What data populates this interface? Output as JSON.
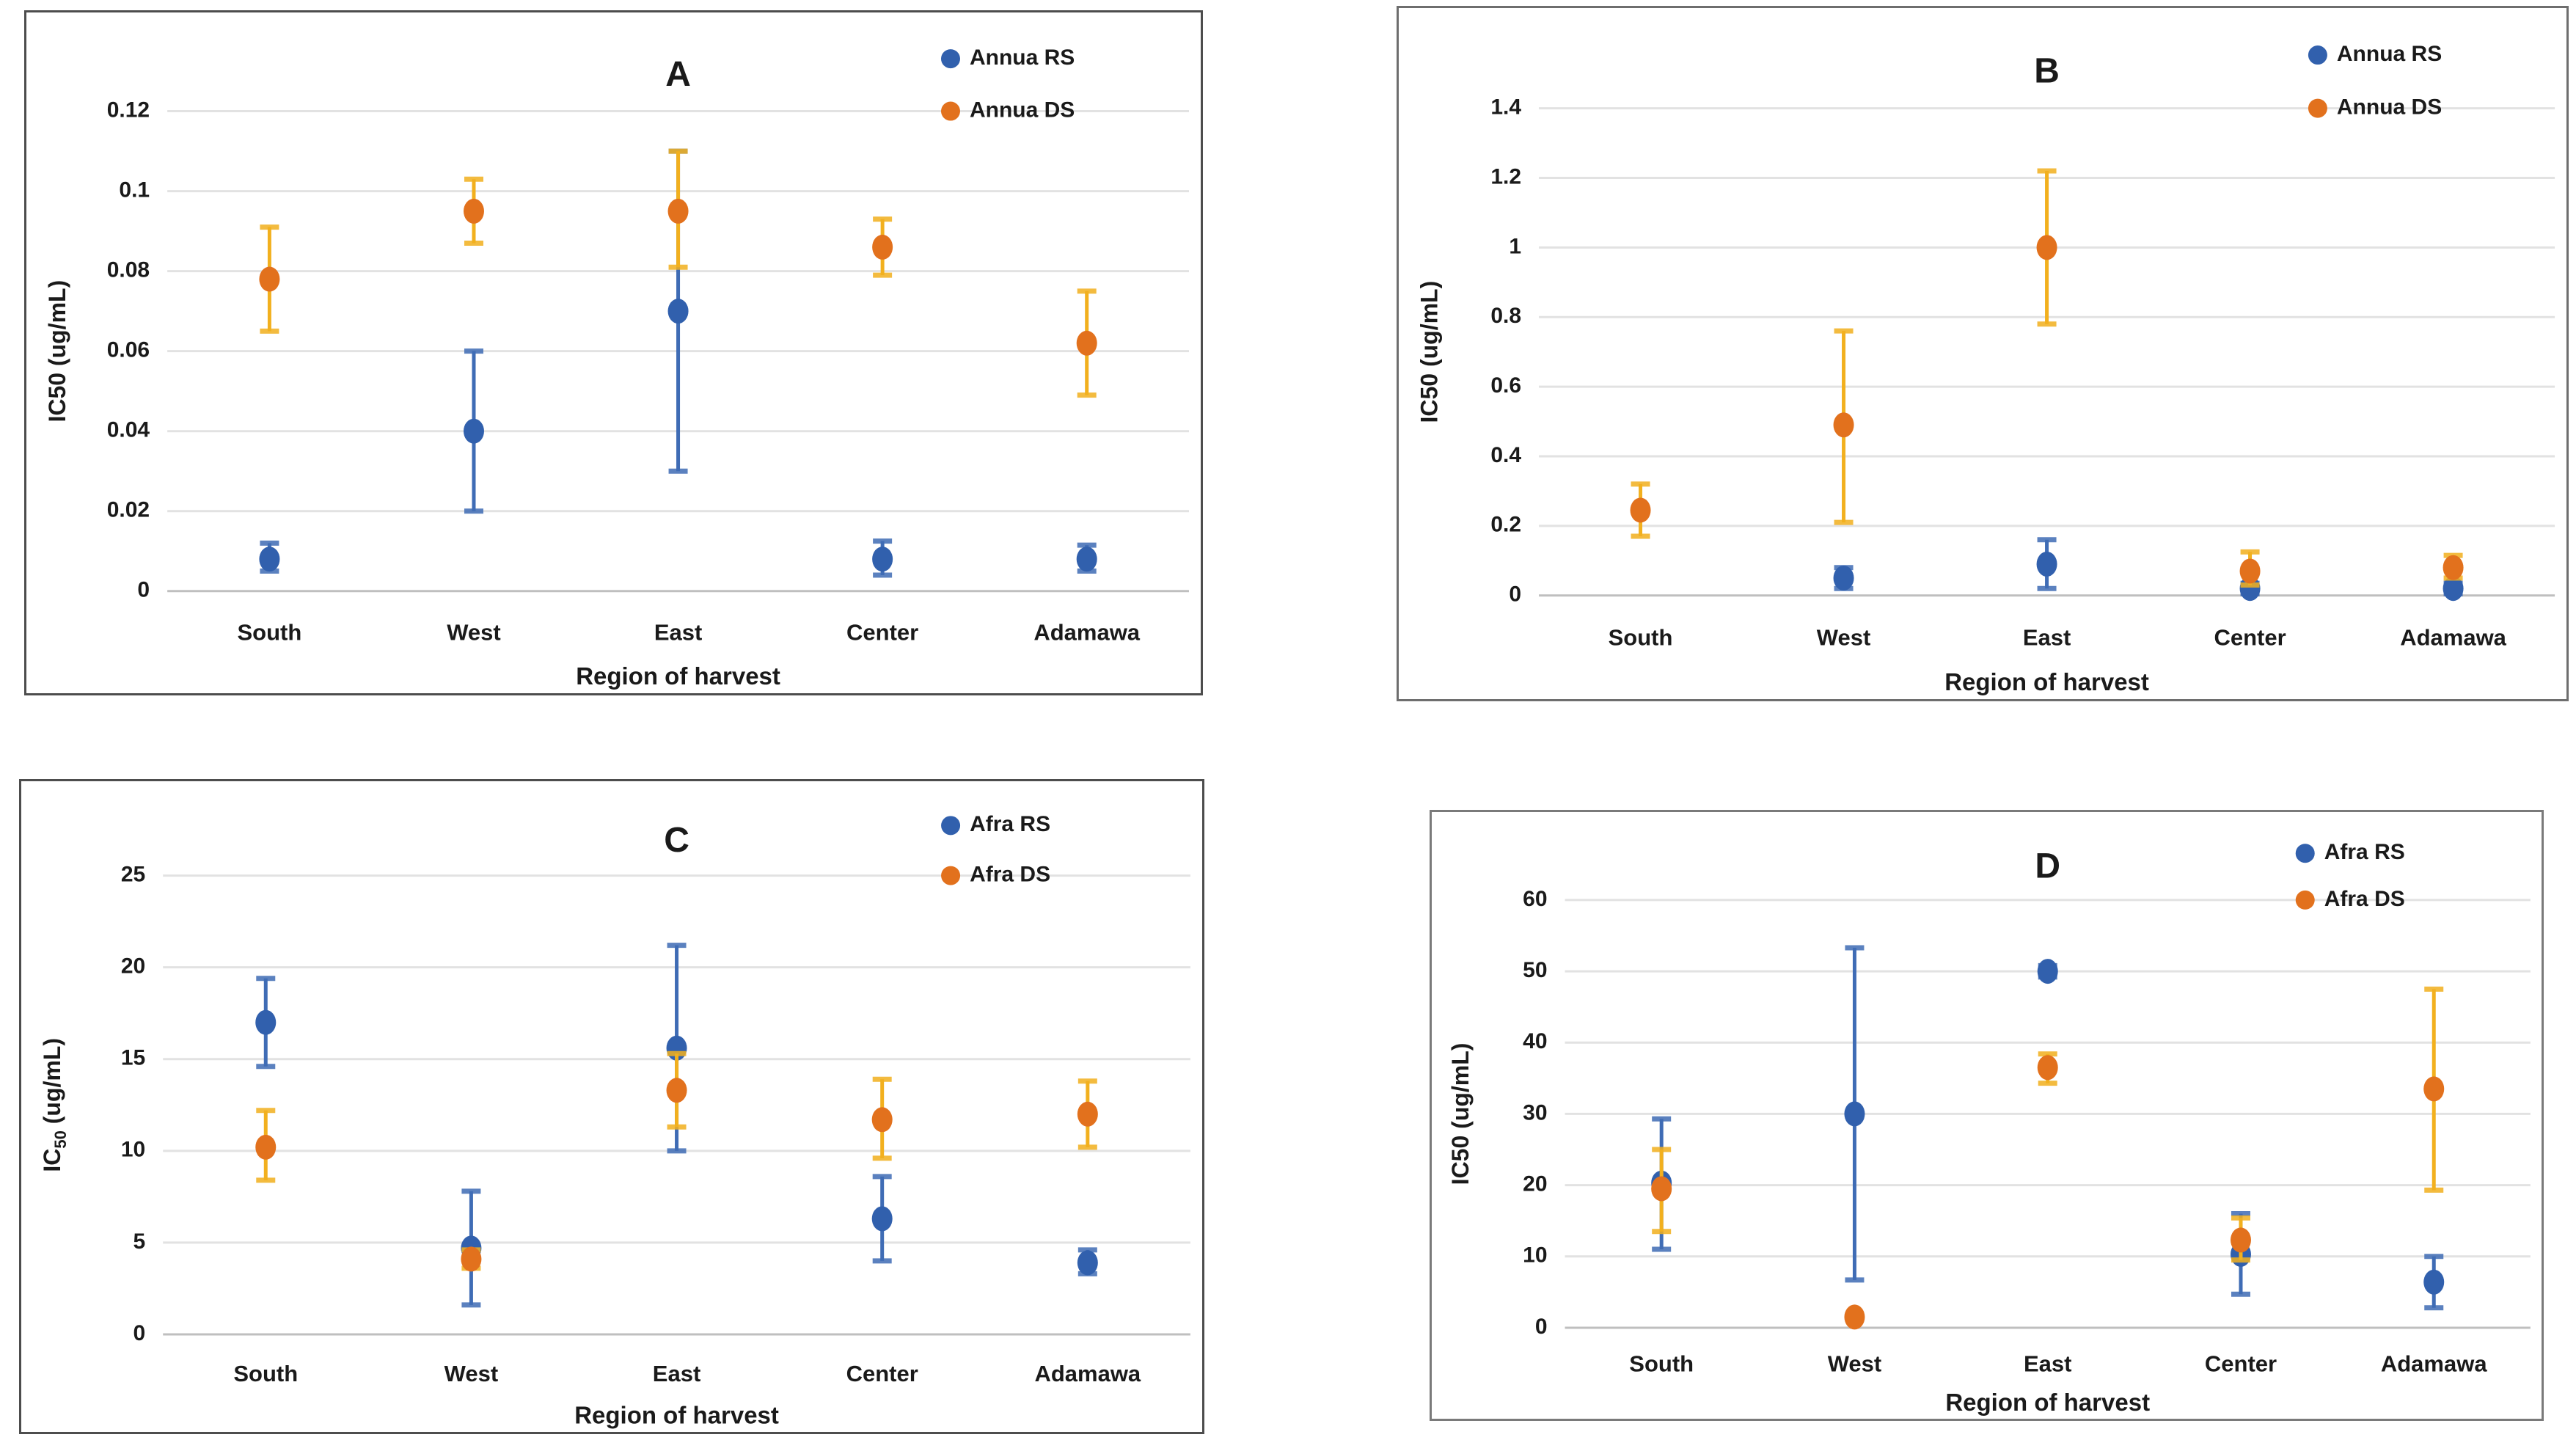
{
  "figure": {
    "background": "#ffffff",
    "grid_color": "#e2e2e2",
    "zero_line_color": "#bfbfbf",
    "text_color": "#1a1a1a"
  },
  "chart_data": [
    {
      "type": "scatter",
      "panel": "A",
      "title": "A",
      "xlabel": "Region of harvest",
      "ylabel": "IC50 (ug/mL)",
      "ylabel_subscript50": false,
      "categories": [
        "South",
        "West",
        "East",
        "Center",
        "Adamawa"
      ],
      "ymax": 0.12,
      "yticks": [
        {
          "value": 0,
          "label": "0"
        },
        {
          "value": 0.02,
          "label": "0.02"
        },
        {
          "value": 0.04,
          "label": "0.04"
        },
        {
          "value": 0.06,
          "label": "0.06"
        },
        {
          "value": 0.08,
          "label": "0.08"
        },
        {
          "value": 0.1,
          "label": "0.1"
        },
        {
          "value": 0.12,
          "label": "0.12"
        }
      ],
      "legend_position": "top-right",
      "legend": [
        {
          "label": "Annua RS",
          "color": "#3160ad"
        },
        {
          "label": "Annua DS",
          "color": "#e2711d"
        }
      ],
      "series": [
        {
          "name": "Annua RS",
          "marker_color": "#3160ad",
          "error_color": "#3f6cb5",
          "points": [
            {
              "y": 0.008,
              "lo": 0.005,
              "hi": 0.012
            },
            {
              "y": 0.04,
              "lo": 0.02,
              "hi": 0.06
            },
            {
              "y": 0.07,
              "lo": 0.03,
              "hi": 0.11
            },
            {
              "y": 0.008,
              "lo": 0.004,
              "hi": 0.0125
            },
            {
              "y": 0.008,
              "lo": 0.005,
              "hi": 0.0115
            }
          ]
        },
        {
          "name": "Annua DS",
          "marker_color": "#e2711d",
          "error_color": "#f2b01e",
          "points": [
            {
              "y": 0.078,
              "lo": 0.065,
              "hi": 0.091
            },
            {
              "y": 0.095,
              "lo": 0.087,
              "hi": 0.103
            },
            {
              "y": 0.095,
              "lo": 0.081,
              "hi": 0.11
            },
            {
              "y": 0.086,
              "lo": 0.079,
              "hi": 0.093
            },
            {
              "y": 0.062,
              "lo": 0.049,
              "hi": 0.075
            }
          ]
        }
      ]
    },
    {
      "type": "scatter",
      "panel": "B",
      "title": "B",
      "xlabel": "Region of harvest",
      "ylabel": "IC50 (ug/mL)",
      "ylabel_subscript50": false,
      "categories": [
        "South",
        "West",
        "East",
        "Center",
        "Adamawa"
      ],
      "ymax": 1.4,
      "yticks": [
        {
          "value": 0,
          "label": "0"
        },
        {
          "value": 0.2,
          "label": "0.2"
        },
        {
          "value": 0.4,
          "label": "0.4"
        },
        {
          "value": 0.6,
          "label": "0.6"
        },
        {
          "value": 0.8,
          "label": "0.8"
        },
        {
          "value": 1.0,
          "label": "1"
        },
        {
          "value": 1.2,
          "label": "1.2"
        },
        {
          "value": 1.4,
          "label": "1.4"
        }
      ],
      "legend_position": "top-right",
      "legend": [
        {
          "label": "Annua RS",
          "color": "#3160ad"
        },
        {
          "label": "Annua DS",
          "color": "#e2711d"
        }
      ],
      "series": [
        {
          "name": "Annua RS",
          "marker_color": "#3160ad",
          "error_color": "#3f6cb5",
          "points": [
            null,
            {
              "y": 0.05,
              "lo": 0.02,
              "hi": 0.08
            },
            {
              "y": 0.09,
              "lo": 0.02,
              "hi": 0.16
            },
            {
              "y": 0.02,
              "lo": 0.005,
              "hi": 0.035
            },
            {
              "y": 0.02,
              "lo": 0.005,
              "hi": 0.035
            }
          ]
        },
        {
          "name": "Annua DS",
          "marker_color": "#e2711d",
          "error_color": "#f2b01e",
          "points": [
            {
              "y": 0.245,
              "lo": 0.17,
              "hi": 0.32
            },
            {
              "y": 0.49,
              "lo": 0.21,
              "hi": 0.76
            },
            {
              "y": 1.0,
              "lo": 0.78,
              "hi": 1.22
            },
            {
              "y": 0.07,
              "lo": 0.03,
              "hi": 0.125
            },
            {
              "y": 0.08,
              "lo": 0.05,
              "hi": 0.115
            }
          ]
        }
      ]
    },
    {
      "type": "scatter",
      "panel": "C",
      "title": "C",
      "xlabel": "Region of harvest",
      "ylabel": "IC50 (ug/mL)",
      "ylabel_subscript50": true,
      "categories": [
        "South",
        "West",
        "East",
        "Center",
        "Adamawa"
      ],
      "ymax": 25,
      "yticks": [
        {
          "value": 0,
          "label": "0"
        },
        {
          "value": 5,
          "label": "5"
        },
        {
          "value": 10,
          "label": "10"
        },
        {
          "value": 15,
          "label": "15"
        },
        {
          "value": 20,
          "label": "20"
        },
        {
          "value": 25,
          "label": "25"
        }
      ],
      "legend_position": "top-right",
      "legend": [
        {
          "label": "Afra RS",
          "color": "#3160ad"
        },
        {
          "label": "Afra DS",
          "color": "#e2711d"
        }
      ],
      "series": [
        {
          "name": "Afra RS",
          "marker_color": "#3160ad",
          "error_color": "#3f6cb5",
          "points": [
            {
              "y": 17.0,
              "lo": 14.6,
              "hi": 19.4
            },
            {
              "y": 4.7,
              "lo": 1.6,
              "hi": 7.8
            },
            {
              "y": 15.6,
              "lo": 10.0,
              "hi": 21.2
            },
            {
              "y": 6.3,
              "lo": 4.0,
              "hi": 8.6
            },
            {
              "y": 3.9,
              "lo": 3.3,
              "hi": 4.6
            }
          ]
        },
        {
          "name": "Afra DS",
          "marker_color": "#e2711d",
          "error_color": "#f2b01e",
          "points": [
            {
              "y": 10.2,
              "lo": 8.4,
              "hi": 12.2
            },
            {
              "y": 4.1,
              "lo": 3.6,
              "hi": 4.6
            },
            {
              "y": 13.3,
              "lo": 11.3,
              "hi": 15.3
            },
            {
              "y": 11.7,
              "lo": 9.6,
              "hi": 13.9
            },
            {
              "y": 12.0,
              "lo": 10.2,
              "hi": 13.8
            }
          ]
        }
      ]
    },
    {
      "type": "scatter",
      "panel": "D",
      "title": "D",
      "xlabel": "Region of harvest",
      "ylabel": "IC50 (ug/mL)",
      "ylabel_subscript50": false,
      "categories": [
        "South",
        "West",
        "East",
        "Center",
        "Adamawa"
      ],
      "ymax": 60,
      "yticks": [
        {
          "value": 0,
          "label": "0"
        },
        {
          "value": 10,
          "label": "10"
        },
        {
          "value": 20,
          "label": "20"
        },
        {
          "value": 30,
          "label": "30"
        },
        {
          "value": 40,
          "label": "40"
        },
        {
          "value": 50,
          "label": "50"
        },
        {
          "value": 60,
          "label": "60"
        }
      ],
      "legend_position": "top-right",
      "legend": [
        {
          "label": "Afra RS",
          "color": "#3160ad"
        },
        {
          "label": "Afra DS",
          "color": "#e2711d"
        }
      ],
      "series": [
        {
          "name": "Afra RS",
          "marker_color": "#3160ad",
          "error_color": "#3f6cb5",
          "points": [
            {
              "y": 20.3,
              "lo": 11.0,
              "hi": 29.3
            },
            {
              "y": 30.0,
              "lo": 6.7,
              "hi": 53.3
            },
            {
              "y": 50.0,
              "lo": 49.2,
              "hi": 50.8
            },
            {
              "y": 10.3,
              "lo": 4.7,
              "hi": 16.0
            },
            {
              "y": 6.4,
              "lo": 2.8,
              "hi": 10.0
            }
          ]
        },
        {
          "name": "Afra DS",
          "marker_color": "#e2711d",
          "error_color": "#f2b01e",
          "points": [
            {
              "y": 19.5,
              "lo": 13.5,
              "hi": 25.0
            },
            {
              "y": 1.5,
              "lo": null,
              "hi": null
            },
            {
              "y": 36.5,
              "lo": 34.3,
              "hi": 38.4
            },
            {
              "y": 12.3,
              "lo": 9.5,
              "hi": 15.4
            },
            {
              "y": 33.5,
              "lo": 19.3,
              "hi": 47.5
            }
          ]
        }
      ]
    }
  ]
}
